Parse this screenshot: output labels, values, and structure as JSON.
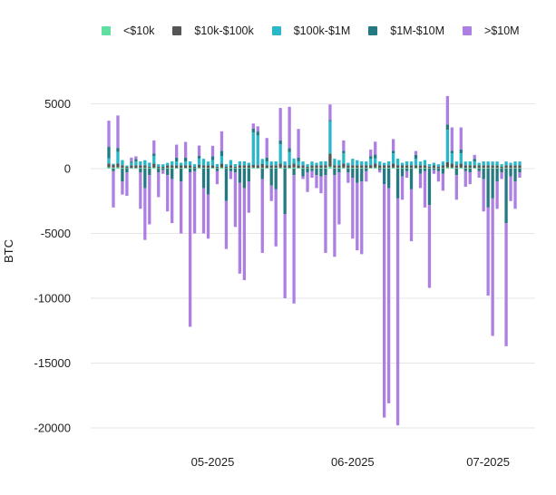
{
  "chart_data": {
    "type": "bar",
    "stacked": true,
    "ylabel": "BTC",
    "ylim": [
      -20000,
      5000
    ],
    "yticks": [
      5000,
      0,
      -5000,
      -10000,
      -15000,
      -20000
    ],
    "xtick_labels": [
      "05-2025",
      "06-2025",
      "07-2025"
    ],
    "xtick_dates": [
      "2025-05-01",
      "2025-06-01",
      "2025-07-01"
    ],
    "x_range": [
      "2025-04-08",
      "2025-07-08"
    ],
    "grid": "horizontal",
    "legend_position": "top",
    "series": [
      {
        "name": "<$10k",
        "color": "#5fe0a0"
      },
      {
        "name": "$10k-$100k",
        "color": "#555555"
      },
      {
        "name": "$100k-$1M",
        "color": "#2ab7c9"
      },
      {
        "name": "$1M-$10M",
        "color": "#247a80"
      },
      {
        "name": ">$10M",
        "color": "#ae7fe3"
      }
    ],
    "bars": [
      {
        "date": "2025-04-08",
        "v": [
          100,
          300,
          400,
          900,
          2000
        ]
      },
      {
        "date": "2025-04-09",
        "v": [
          80,
          200,
          100,
          -200,
          -2800
        ]
      },
      {
        "date": "2025-04-10",
        "v": [
          100,
          300,
          900,
          300,
          2500
        ]
      },
      {
        "date": "2025-04-11",
        "v": [
          60,
          200,
          400,
          -1000,
          -1000
        ]
      },
      {
        "date": "2025-04-12",
        "v": [
          40,
          100,
          100,
          -300,
          -1800
        ]
      },
      {
        "date": "2025-04-13",
        "v": [
          50,
          200,
          200,
          100,
          300
        ]
      },
      {
        "date": "2025-04-14",
        "v": [
          50,
          200,
          300,
          200,
          200
        ]
      },
      {
        "date": "2025-04-15",
        "v": [
          60,
          200,
          300,
          -300,
          -2800
        ]
      },
      {
        "date": "2025-04-16",
        "v": [
          50,
          200,
          400,
          -1500,
          -4000
        ]
      },
      {
        "date": "2025-04-17",
        "v": [
          60,
          100,
          300,
          -500,
          -3800
        ]
      },
      {
        "date": "2025-04-18",
        "v": [
          80,
          300,
          600,
          200,
          1000
        ]
      },
      {
        "date": "2025-04-19",
        "v": [
          40,
          100,
          200,
          -300,
          -1900
        ]
      },
      {
        "date": "2025-04-20",
        "v": [
          40,
          100,
          200,
          -100,
          -300
        ]
      },
      {
        "date": "2025-04-21",
        "v": [
          50,
          200,
          200,
          -500,
          -2800
        ]
      },
      {
        "date": "2025-04-22",
        "v": [
          60,
          200,
          300,
          -800,
          -3400
        ]
      },
      {
        "date": "2025-04-23",
        "v": [
          50,
          200,
          300,
          300,
          1000
        ]
      },
      {
        "date": "2025-04-24",
        "v": [
          50,
          200,
          200,
          -1000,
          -4000
        ]
      },
      {
        "date": "2025-04-25",
        "v": [
          60,
          200,
          300,
          300,
          1200
        ]
      },
      {
        "date": "2025-04-26",
        "v": [
          60,
          200,
          300,
          -300,
          -11900
        ]
      },
      {
        "date": "2025-04-27",
        "v": [
          40,
          100,
          200,
          -200,
          -4800
        ]
      },
      {
        "date": "2025-04-28",
        "v": [
          80,
          200,
          500,
          200,
          800
        ]
      },
      {
        "date": "2025-04-29",
        "v": [
          60,
          200,
          500,
          -1500,
          -3500
        ]
      },
      {
        "date": "2025-04-30",
        "v": [
          50,
          200,
          300,
          -2000,
          -3400
        ]
      },
      {
        "date": "2025-05-01",
        "v": [
          60,
          200,
          400,
          300,
          800
        ]
      },
      {
        "date": "2025-05-02",
        "v": [
          50,
          100,
          200,
          -200,
          -1000
        ]
      },
      {
        "date": "2025-05-03",
        "v": [
          80,
          300,
          600,
          400,
          1500
        ]
      },
      {
        "date": "2025-05-04",
        "v": [
          40,
          100,
          200,
          -2500,
          -3700
        ]
      },
      {
        "date": "2025-05-05",
        "v": [
          60,
          200,
          400,
          -200,
          -600
        ]
      },
      {
        "date": "2025-05-06",
        "v": [
          50,
          100,
          200,
          -300,
          -4200
        ]
      },
      {
        "date": "2025-05-07",
        "v": [
          60,
          200,
          300,
          -1100,
          -7000
        ]
      },
      {
        "date": "2025-05-08",
        "v": [
          60,
          200,
          300,
          -1500,
          -7100
        ]
      },
      {
        "date": "2025-05-09",
        "v": [
          50,
          200,
          200,
          -1000,
          -2400
        ]
      },
      {
        "date": "2025-05-10",
        "v": [
          80,
          200,
          2500,
          300,
          400
        ]
      },
      {
        "date": "2025-05-11",
        "v": [
          60,
          200,
          2300,
          300,
          400
        ]
      },
      {
        "date": "2025-05-12",
        "v": [
          50,
          300,
          400,
          -800,
          -5700
        ]
      },
      {
        "date": "2025-05-13",
        "v": [
          60,
          200,
          300,
          300,
          1500
        ]
      },
      {
        "date": "2025-05-14",
        "v": [
          50,
          200,
          300,
          -1300,
          -1200
        ]
      },
      {
        "date": "2025-05-15",
        "v": [
          60,
          200,
          300,
          -1600,
          -4400
        ]
      },
      {
        "date": "2025-05-16",
        "v": [
          80,
          300,
          1500,
          300,
          2500
        ]
      },
      {
        "date": "2025-05-17",
        "v": [
          50,
          200,
          300,
          -3500,
          -6500
        ]
      },
      {
        "date": "2025-05-18",
        "v": [
          70,
          200,
          1000,
          300,
          3200
        ]
      },
      {
        "date": "2025-05-19",
        "v": [
          80,
          300,
          400,
          -500,
          -9900
        ]
      },
      {
        "date": "2025-05-20",
        "v": [
          60,
          200,
          300,
          300,
          2200
        ]
      },
      {
        "date": "2025-05-21",
        "v": [
          50,
          200,
          300,
          -600,
          -200
        ]
      },
      {
        "date": "2025-05-22",
        "v": [
          40,
          100,
          200,
          -300,
          -1500
        ]
      },
      {
        "date": "2025-05-23",
        "v": [
          50,
          200,
          300,
          -200,
          -500
        ]
      },
      {
        "date": "2025-05-24",
        "v": [
          50,
          200,
          200,
          -500,
          -1000
        ]
      },
      {
        "date": "2025-05-25",
        "v": [
          60,
          200,
          300,
          -600,
          -1300
        ]
      },
      {
        "date": "2025-05-26",
        "v": [
          70,
          200,
          300,
          -500,
          -6000
        ]
      },
      {
        "date": "2025-05-27",
        "v": [
          150,
          1000,
          2500,
          100,
          1200
        ]
      },
      {
        "date": "2025-05-28",
        "v": [
          60,
          200,
          500,
          -500,
          -6300
        ]
      },
      {
        "date": "2025-05-29",
        "v": [
          60,
          200,
          400,
          -300,
          -4000
        ]
      },
      {
        "date": "2025-05-30",
        "v": [
          80,
          300,
          800,
          200,
          800
        ]
      },
      {
        "date": "2025-05-31",
        "v": [
          50,
          200,
          200,
          -300,
          -800
        ]
      },
      {
        "date": "2025-06-01",
        "v": [
          60,
          200,
          500,
          -700,
          -4700
        ]
      },
      {
        "date": "2025-06-02",
        "v": [
          50,
          200,
          400,
          -1100,
          -5200
        ]
      },
      {
        "date": "2025-06-03",
        "v": [
          60,
          200,
          300,
          -1000,
          -5600
        ]
      },
      {
        "date": "2025-06-04",
        "v": [
          50,
          200,
          300,
          -200,
          -800
        ]
      },
      {
        "date": "2025-06-05",
        "v": [
          70,
          200,
          500,
          200,
          500
        ]
      },
      {
        "date": "2025-06-06",
        "v": [
          80,
          300,
          400,
          300,
          1000
        ]
      },
      {
        "date": "2025-06-07",
        "v": [
          50,
          200,
          300,
          -100,
          -200
        ]
      },
      {
        "date": "2025-06-08",
        "v": [
          50,
          200,
          200,
          -1200,
          -18000
        ]
      },
      {
        "date": "2025-06-09",
        "v": [
          60,
          200,
          300,
          -1500,
          -16600
        ]
      },
      {
        "date": "2025-06-10",
        "v": [
          80,
          300,
          800,
          200,
          900
        ]
      },
      {
        "date": "2025-06-11",
        "v": [
          70,
          200,
          500,
          -2300,
          -17500
        ]
      },
      {
        "date": "2025-06-12",
        "v": [
          50,
          200,
          200,
          -600,
          -1800
        ]
      },
      {
        "date": "2025-06-13",
        "v": [
          60,
          200,
          300,
          -200,
          -500
        ]
      },
      {
        "date": "2025-06-14",
        "v": [
          50,
          200,
          300,
          -1600,
          -4000
        ]
      },
      {
        "date": "2025-06-15",
        "v": [
          60,
          200,
          500,
          300,
          300
        ]
      },
      {
        "date": "2025-06-16",
        "v": [
          50,
          200,
          300,
          -400,
          -1100
        ]
      },
      {
        "date": "2025-06-17",
        "v": [
          60,
          200,
          400,
          -200,
          -2800
        ]
      },
      {
        "date": "2025-06-18",
        "v": [
          50,
          100,
          200,
          -2800,
          -6400
        ]
      },
      {
        "date": "2025-06-19",
        "v": [
          50,
          200,
          200,
          -100,
          -300
        ]
      },
      {
        "date": "2025-06-20",
        "v": [
          40,
          100,
          200,
          -200,
          -800
        ]
      },
      {
        "date": "2025-06-21",
        "v": [
          50,
          200,
          300,
          -400,
          -1300
        ]
      },
      {
        "date": "2025-06-22",
        "v": [
          100,
          400,
          2500,
          400,
          2200
        ]
      },
      {
        "date": "2025-06-23",
        "v": [
          80,
          300,
          800,
          200,
          1800
        ]
      },
      {
        "date": "2025-06-24",
        "v": [
          50,
          200,
          300,
          -500,
          -1900
        ]
      },
      {
        "date": "2025-06-25",
        "v": [
          80,
          300,
          800,
          300,
          1700
        ]
      },
      {
        "date": "2025-06-26",
        "v": [
          50,
          200,
          300,
          -200,
          -1200
        ]
      },
      {
        "date": "2025-06-27",
        "v": [
          60,
          200,
          300,
          -300,
          -900
        ]
      },
      {
        "date": "2025-06-28",
        "v": [
          60,
          200,
          300,
          200,
          300
        ]
      },
      {
        "date": "2025-06-29",
        "v": [
          50,
          200,
          200,
          -200,
          -500
        ]
      },
      {
        "date": "2025-06-30",
        "v": [
          60,
          200,
          300,
          -800,
          -2500
        ]
      },
      {
        "date": "2025-07-01",
        "v": [
          50,
          200,
          300,
          -3000,
          -6800
        ]
      },
      {
        "date": "2025-07-02",
        "v": [
          50,
          200,
          300,
          -2300,
          -10600
        ]
      },
      {
        "date": "2025-07-03",
        "v": [
          50,
          200,
          300,
          -1000,
          -2100
        ]
      },
      {
        "date": "2025-07-04",
        "v": [
          40,
          100,
          200,
          -300,
          -500
        ]
      },
      {
        "date": "2025-07-05",
        "v": [
          50,
          200,
          300,
          -4200,
          -9500
        ]
      },
      {
        "date": "2025-07-06",
        "v": [
          50,
          200,
          200,
          -600,
          -1900
        ]
      },
      {
        "date": "2025-07-07",
        "v": [
          50,
          200,
          300,
          -1000,
          -2100
        ]
      },
      {
        "date": "2025-07-08",
        "v": [
          50,
          200,
          300,
          -300,
          -400
        ]
      }
    ]
  }
}
